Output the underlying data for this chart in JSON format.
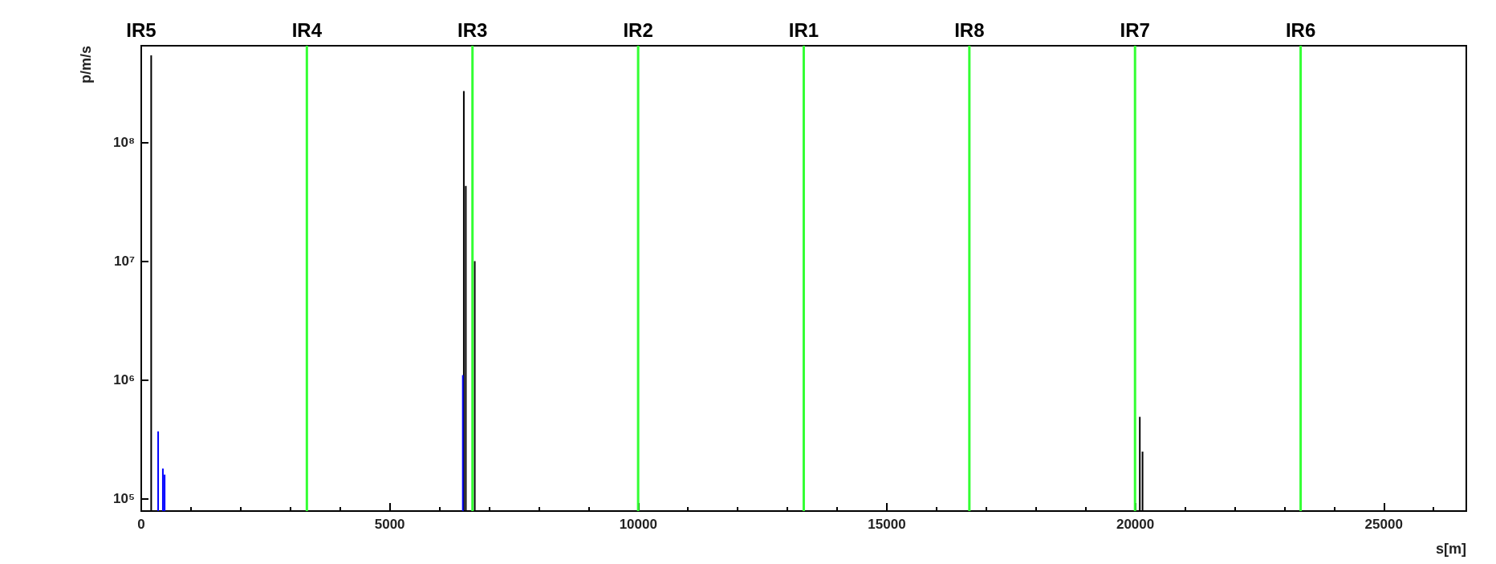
{
  "chart_data": {
    "type": "bar",
    "xlabel": "s[m]",
    "ylabel": "p/m/s",
    "xlim": [
      0,
      26659
    ],
    "xticks": [
      0,
      5000,
      10000,
      15000,
      20000,
      25000
    ],
    "ylim": [
      79000,
      650000000
    ],
    "yticks": [
      {
        "value": 100000,
        "label": "10⁵"
      },
      {
        "value": 1000000,
        "label": "10⁶"
      },
      {
        "value": 10000000,
        "label": "10⁷"
      },
      {
        "value": 100000000,
        "label": "10⁸"
      }
    ],
    "log": "y",
    "series": [
      {
        "color": "#000000",
        "x": [
          200,
          6490,
          6530,
          6710,
          20090,
          20145
        ],
        "values": [
          540000000,
          270000000,
          43000000,
          10000000,
          490000,
          250000
        ]
      },
      {
        "color": "#0000ff",
        "x": [
          340,
          435,
          470,
          6470
        ],
        "values": [
          370000,
          180000,
          160000,
          1100000
        ]
      }
    ],
    "annotations": [
      "IR5"
    ],
    "ref_lines": [
      {
        "axis": "x",
        "value": 3332,
        "label": "IR4",
        "color": "#33ff33"
      },
      {
        "axis": "x",
        "value": 6664,
        "label": "IR3",
        "color": "#33ff33"
      },
      {
        "axis": "x",
        "value": 9997,
        "label": "IR2",
        "color": "#33ff33"
      },
      {
        "axis": "x",
        "value": 13329,
        "label": "IR1",
        "color": "#33ff33"
      },
      {
        "axis": "x",
        "value": 16661,
        "label": "IR8",
        "color": "#33ff33"
      },
      {
        "axis": "x",
        "value": 19994,
        "label": "IR7",
        "color": "#33ff33"
      },
      {
        "axis": "x",
        "value": 23326,
        "label": "IR6",
        "color": "#33ff33"
      }
    ]
  }
}
